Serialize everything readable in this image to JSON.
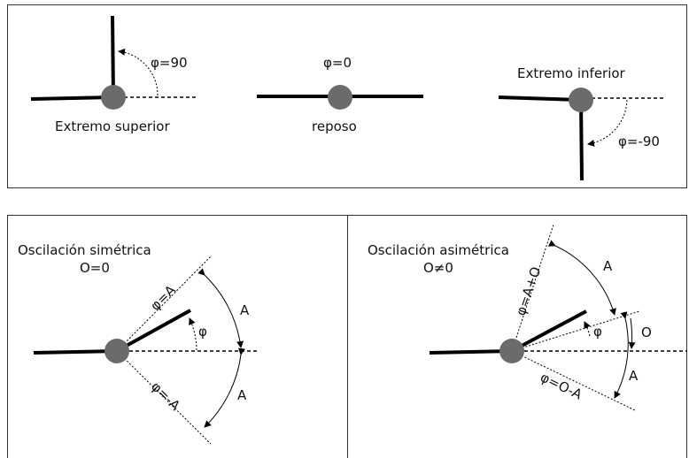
{
  "top_panel": {
    "diagram_1": {
      "angle_label": "φ=90",
      "caption": "Extremo superior"
    },
    "diagram_2": {
      "angle_label": "φ=0",
      "caption": "reposo"
    },
    "diagram_3": {
      "angle_label": "φ=-90",
      "caption": "Extremo inferior"
    }
  },
  "symmetric_panel": {
    "title": "Oscilación simétrica",
    "subtitle": "O=0",
    "upper_line_label": "φ=A",
    "lower_line_label": "φ=-A",
    "angle_label": "φ",
    "upper_arc_label": "A",
    "lower_arc_label": "A"
  },
  "asymmetric_panel": {
    "title": "Oscilación asimétrica",
    "subtitle": "O≠0",
    "upper_line_label": "φ=A+O",
    "lower_line_label": "φ=O-A",
    "angle_label": "φ",
    "upper_arc_label": "A",
    "offset_arc_label": "O",
    "lower_arc_label": "A"
  },
  "colors": {
    "joint": "#6b6b6b",
    "line": "#000000",
    "frame": "#333333"
  }
}
